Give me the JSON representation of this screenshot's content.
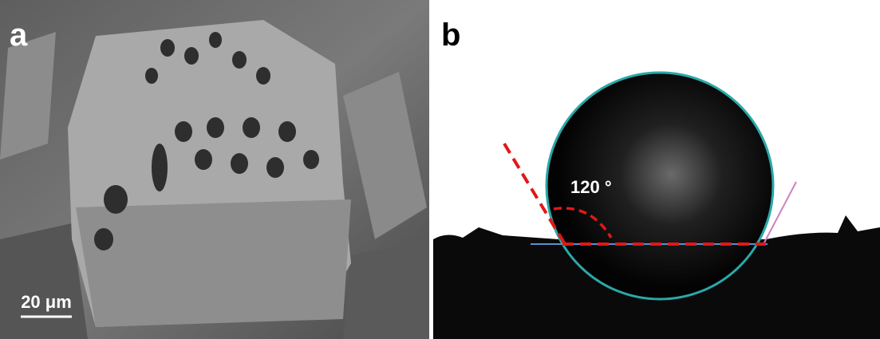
{
  "panels": [
    {
      "label": "a",
      "scale_bar": "20 μm"
    },
    {
      "label": "b",
      "angle_label": "120 °"
    }
  ]
}
